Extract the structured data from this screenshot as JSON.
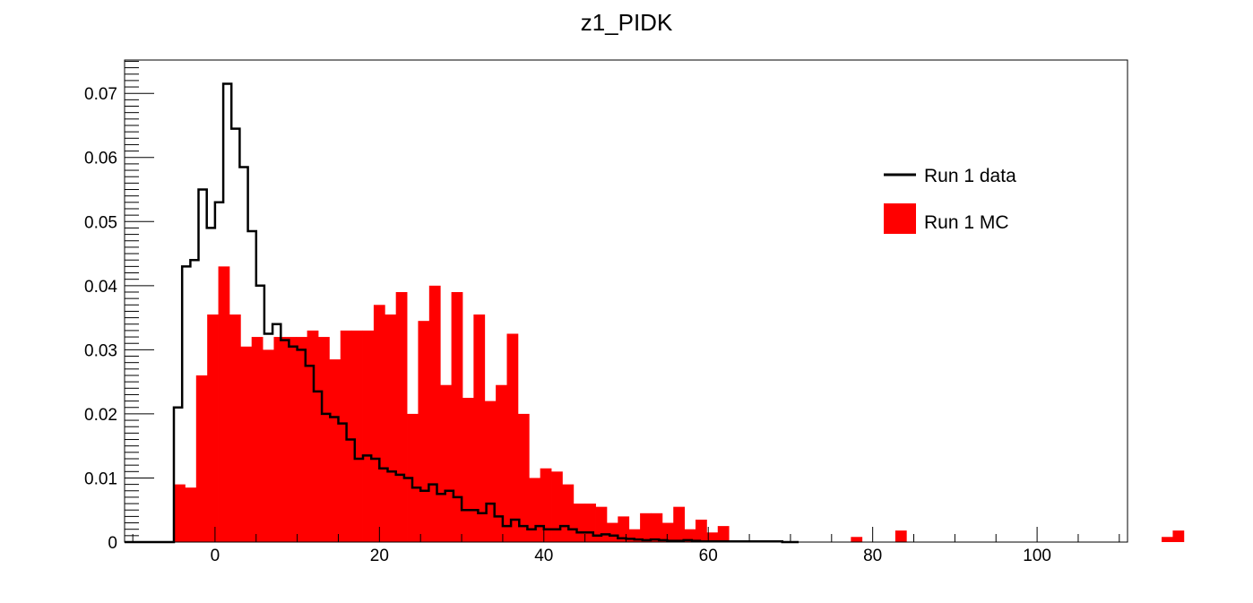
{
  "chart_data": {
    "type": "histogram",
    "title": "z1_PIDK",
    "xlabel": "",
    "ylabel": "",
    "xlim": [
      -11,
      111
    ],
    "ylim": [
      0,
      0.0752
    ],
    "x_ticks": [
      "0",
      "20",
      "40",
      "60",
      "80",
      "100"
    ],
    "y_ticks": [
      "0",
      "0.01",
      "0.02",
      "0.03",
      "0.04",
      "0.05",
      "0.06",
      "0.07"
    ],
    "legend_position": "top-right",
    "colors": {
      "data_line": "#000000",
      "mc_fill": "#ff0000"
    },
    "series": [
      {
        "name": "Run 1 data",
        "style": "step-line",
        "bin_start": -11,
        "bin_width": 1,
        "values": [
          0,
          0,
          0,
          0,
          0,
          0,
          0.021,
          0.043,
          0.044,
          0.055,
          0.049,
          0.053,
          0.0715,
          0.0645,
          0.0585,
          0.0485,
          0.04,
          0.0325,
          0.034,
          0.0315,
          0.0305,
          0.03,
          0.0275,
          0.0235,
          0.02,
          0.0195,
          0.0185,
          0.016,
          0.013,
          0.0135,
          0.013,
          0.0115,
          0.011,
          0.0105,
          0.01,
          0.0085,
          0.008,
          0.009,
          0.0075,
          0.008,
          0.007,
          0.005,
          0.005,
          0.0045,
          0.006,
          0.004,
          0.0025,
          0.0035,
          0.0025,
          0.002,
          0.0025,
          0.002,
          0.002,
          0.0025,
          0.002,
          0.0015,
          0.0015,
          0.001,
          0.0012,
          0.001,
          0.0006,
          0.0005,
          0.0004,
          0.0003,
          0.0004,
          0.0003,
          0.0002,
          0.0002,
          0.0003,
          0.0002,
          0.0001,
          0.0001,
          0.0001,
          0.0001,
          0.0001,
          0.0001,
          0.0001,
          0.0001,
          0.0001,
          0.0001,
          0,
          0
        ]
      },
      {
        "name": "Run 1 MC",
        "style": "filled-bars",
        "bin_start": -5,
        "bin_width": 1.35,
        "values": [
          0.009,
          0.0085,
          0.026,
          0.0355,
          0.043,
          0.0355,
          0.0305,
          0.032,
          0.03,
          0.032,
          0.032,
          0.032,
          0.033,
          0.032,
          0.0285,
          0.033,
          0.033,
          0.033,
          0.037,
          0.0355,
          0.039,
          0.02,
          0.0345,
          0.04,
          0.0245,
          0.039,
          0.0225,
          0.0355,
          0.022,
          0.0245,
          0.0325,
          0.02,
          0.01,
          0.0115,
          0.011,
          0.009,
          0.006,
          0.006,
          0.0055,
          0.003,
          0.004,
          0.002,
          0.0045,
          0.0045,
          0.003,
          0.0055,
          0.002,
          0.0035,
          0.0015,
          0.0025,
          0,
          0,
          0,
          0,
          0,
          0,
          0,
          0,
          0,
          0,
          0,
          0.0008,
          0,
          0,
          0,
          0.0018,
          0,
          0,
          0,
          0,
          0,
          0,
          0,
          0,
          0,
          0,
          0,
          0,
          0,
          0,
          0,
          0,
          0,
          0,
          0,
          0,
          0,
          0,
          0,
          0.0008,
          0.0018
        ]
      }
    ]
  }
}
